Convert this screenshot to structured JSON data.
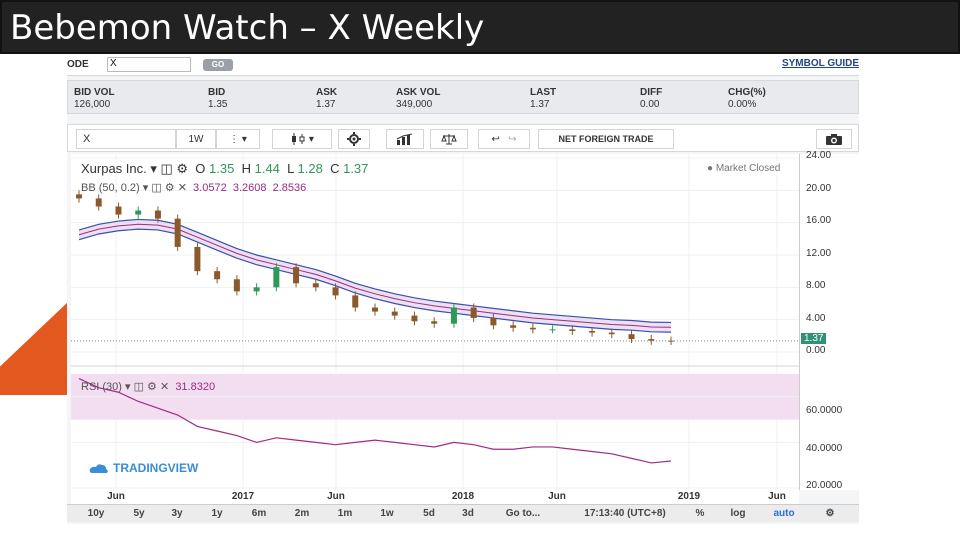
{
  "slide": {
    "title": "Bebemon Watch – X Weekly",
    "accent_color": "#e2581f"
  },
  "ticker": {
    "code_label": "ODE",
    "code_value": "X",
    "go_label": "GO",
    "symbol_guide_label": "SYMBOL GUIDE"
  },
  "quote": {
    "columns": [
      {
        "header": "BID VOL",
        "value": "126,000"
      },
      {
        "header": "BID",
        "value": "1.35"
      },
      {
        "header": "ASK",
        "value": "1.37"
      },
      {
        "header": "ASK VOL",
        "value": "349,000"
      },
      {
        "header": "LAST",
        "value": "1.37"
      },
      {
        "header": "DIFF",
        "value": "0.00"
      },
      {
        "header": "CHG(%)",
        "value": "0.00%"
      }
    ]
  },
  "toolbar": {
    "symbol": "X",
    "interval": "1W",
    "net_foreign_label": "NET FOREIGN TRADE"
  },
  "legend": {
    "name": "Xurpas Inc.",
    "o_label": "O",
    "o": "1.35",
    "h_label": "H",
    "h": "1.44",
    "l_label": "L",
    "l": "1.28",
    "c_label": "C",
    "c": "1.37",
    "bb_label": "BB (50, 0.2)",
    "bb1": "3.0572",
    "bb2": "3.2608",
    "bb3": "2.8536",
    "market_status": "Market Closed",
    "rsi_label": "RSI (30)",
    "rsi_value": "31.8320"
  },
  "branding": {
    "text": "TRADINGVIEW"
  },
  "price_axis": {
    "labels": [
      "24.00",
      "20.00",
      "16.00",
      "12.00",
      "8.00",
      "4.00",
      "0.00"
    ],
    "last": "1.37",
    "rsi_labels": [
      "60.0000",
      "40.0000",
      "20.0000"
    ]
  },
  "time_axis": {
    "labels": [
      "Jun",
      "2017",
      "Jun",
      "2018",
      "Jun",
      "2019",
      "Jun"
    ]
  },
  "range_bar": {
    "items": [
      "10y",
      "5y",
      "3y",
      "1y",
      "6m",
      "2m",
      "1m",
      "1w",
      "5d",
      "3d",
      "Go to...",
      "17:13:40 (UTC+8)",
      "%",
      "log",
      "auto"
    ]
  },
  "chart_data": [
    {
      "type": "candlestick",
      "title": "Xurpas Inc.",
      "x_range": [
        "2016-05",
        "2019-06"
      ],
      "x_ticks": [
        "Jun",
        "2017",
        "Jun",
        "2018",
        "Jun",
        "2019",
        "Jun"
      ],
      "ylim": [
        0,
        24
      ],
      "y_ticks": [
        0,
        4,
        8,
        12,
        16,
        20,
        24
      ],
      "last_ohlc": {
        "open": 1.35,
        "high": 1.44,
        "low": 1.28,
        "close": 1.37
      },
      "close_series": {
        "x": [
          "2016-05",
          "2016-06",
          "2016-07",
          "2016-08",
          "2016-09",
          "2016-10",
          "2016-11",
          "2016-12",
          "2017-01",
          "2017-02",
          "2017-03",
          "2017-04",
          "2017-05",
          "2017-06",
          "2017-07",
          "2017-08",
          "2017-09",
          "2017-10",
          "2017-11",
          "2017-12",
          "2018-01",
          "2018-02",
          "2018-03",
          "2018-04",
          "2018-05",
          "2018-06",
          "2018-07",
          "2018-08",
          "2018-09",
          "2018-10",
          "2018-11"
        ],
        "values": [
          19,
          18,
          17,
          17.5,
          16.5,
          13,
          10,
          9,
          7.5,
          8,
          10.5,
          8.5,
          8,
          7,
          5.5,
          5,
          4.5,
          3.8,
          3.5,
          5.5,
          4.2,
          3.3,
          3,
          2.8,
          2.8,
          2.6,
          2.4,
          2.2,
          1.6,
          1.4,
          1.37
        ]
      },
      "bollinger": {
        "label": "BB (50, 0.2)",
        "legend_values": [
          3.0572,
          3.2608,
          2.8536
        ],
        "middle": [
          14.5,
          15.2,
          15.6,
          15.8,
          15.7,
          15.2,
          14.2,
          13.2,
          12.2,
          11.4,
          10.8,
          10.2,
          9.6,
          8.8,
          7.9,
          7.2,
          6.6,
          6.1,
          5.7,
          5.4,
          5.1,
          4.8,
          4.5,
          4.2,
          4,
          3.8,
          3.6,
          3.4,
          3.3,
          3.1,
          3.06
        ]
      }
    },
    {
      "type": "line",
      "title": "RSI (30)",
      "ylim": [
        20,
        70
      ],
      "y_ticks": [
        20,
        40,
        60
      ],
      "band": [
        50,
        70
      ],
      "last_value": 31.832,
      "values": [
        68,
        64,
        62,
        58,
        55,
        52,
        47,
        45,
        43,
        40,
        42,
        41,
        40,
        39,
        40,
        41,
        40,
        39,
        38,
        40,
        39,
        37,
        37,
        38,
        38,
        37,
        36,
        35,
        33,
        31,
        31.832
      ]
    }
  ]
}
